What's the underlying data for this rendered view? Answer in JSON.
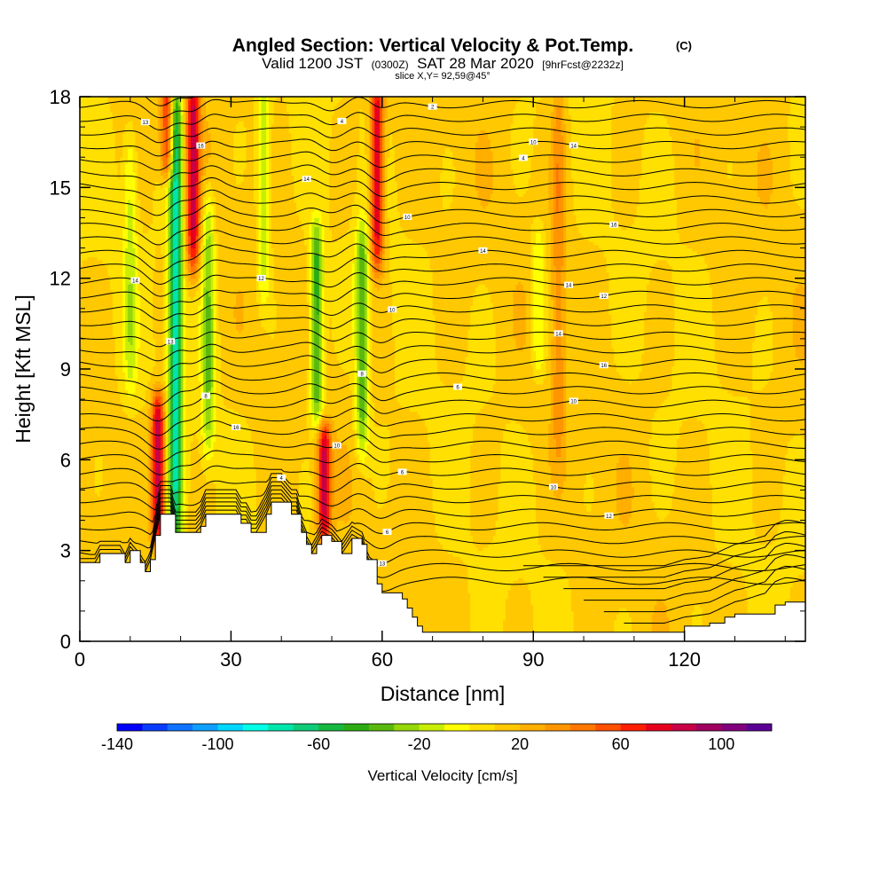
{
  "chart_data": {
    "type": "heatmap",
    "title": "Angled Section: Vertical Velocity & Pot.Temp.",
    "title_unit": "(C)",
    "subtitle_prefix": "Valid 1200 JST",
    "subtitle_utc": "(0300Z)",
    "subtitle_date": "SAT 28 Mar 2020",
    "subtitle_fcst": "[9hrFcst@2232z]",
    "slice_label": "slice X,Y= 92,59@45°",
    "xlabel": "Distance [nm]",
    "ylabel": "Height [Kft MSL]",
    "xlim": [
      0,
      144
    ],
    "ylim": [
      0,
      18
    ],
    "x_ticks": [
      0,
      30,
      60,
      90,
      120
    ],
    "x_tick_labels": [
      "0",
      "30",
      "60",
      "90",
      "120"
    ],
    "y_ticks": [
      0,
      3,
      6,
      9,
      12,
      15,
      18
    ],
    "y_tick_labels": [
      "0",
      "3",
      "6",
      "9",
      "12",
      "15",
      "18"
    ],
    "colorbar": {
      "label": "Vertical Velocity [cm/s]",
      "levels": [
        -140,
        -130,
        -120,
        -110,
        -100,
        -90,
        -80,
        -70,
        -60,
        -50,
        -40,
        -30,
        -20,
        -10,
        0,
        10,
        20,
        30,
        40,
        50,
        60,
        70,
        80,
        90,
        100,
        110
      ],
      "tick_values": [
        -140,
        -100,
        -60,
        -20,
        20,
        60,
        100
      ],
      "tick_labels": [
        "-140",
        "-100",
        "-60",
        "-20",
        "20",
        "60",
        "100"
      ],
      "colors": [
        "#0000ff",
        "#0a3cff",
        "#0f73ff",
        "#0fa0ff",
        "#00d7ff",
        "#00ffe6",
        "#00e6aa",
        "#10cc78",
        "#17b840",
        "#2cac12",
        "#5ab90e",
        "#96d70a",
        "#c8ee06",
        "#ffff00",
        "#ffe000",
        "#ffc800",
        "#ffaf00",
        "#ff9600",
        "#ff7800",
        "#ff5000",
        "#ff1e00",
        "#e6001e",
        "#c80046",
        "#a0005f",
        "#82007d",
        "#5a0096"
      ]
    },
    "terrain_profile": {
      "x": [
        0,
        3,
        4,
        8,
        9,
        10,
        12,
        13,
        14,
        15,
        16,
        18,
        19,
        21,
        23,
        24,
        25,
        26,
        27,
        29,
        31,
        32,
        33,
        34,
        35,
        37,
        38,
        39,
        40,
        42,
        43,
        44,
        45,
        46,
        47,
        48,
        50,
        52,
        54,
        56,
        57,
        59,
        60,
        61,
        63,
        64,
        65,
        66,
        67,
        68,
        70,
        80,
        90,
        100,
        105,
        110,
        113,
        116,
        120,
        125,
        128,
        130,
        136,
        138,
        140,
        142,
        144
      ],
      "y": [
        2.6,
        2.6,
        2.9,
        2.9,
        2.6,
        3.0,
        2.6,
        2.3,
        2.7,
        3.5,
        4.2,
        4.2,
        3.6,
        3.6,
        3.6,
        3.8,
        4.2,
        4.2,
        4.2,
        4.2,
        4.2,
        3.9,
        3.9,
        3.6,
        3.6,
        4.2,
        4.6,
        4.6,
        4.6,
        4.2,
        4.2,
        3.6,
        3.2,
        2.9,
        3.2,
        3.5,
        3.3,
        2.9,
        3.4,
        3.2,
        2.7,
        1.9,
        1.6,
        1.6,
        1.6,
        1.4,
        1.1,
        0.8,
        0.5,
        0.3,
        0.3,
        0.3,
        0.3,
        0.3,
        0.3,
        0.3,
        0.3,
        0.3,
        0.5,
        0.6,
        0.8,
        0.9,
        0.9,
        1.2,
        1.3,
        1.3,
        1.3
      ]
    },
    "updraft_downdraft_features": [
      {
        "x": 15.5,
        "z": [
          4.0,
          7.5
        ],
        "w": 80
      },
      {
        "x": 17.5,
        "z": [
          16.0,
          18.0
        ],
        "w": 60
      },
      {
        "x": 19.0,
        "z": [
          4.0,
          18.0
        ],
        "w": -90
      },
      {
        "x": 22.5,
        "z": [
          13.0,
          18.0
        ],
        "w": 70
      },
      {
        "x": 25.5,
        "z": [
          7.0,
          14.0
        ],
        "w": -40
      },
      {
        "x": 36.5,
        "z": [
          12.0,
          18.0
        ],
        "w": -30
      },
      {
        "x": 47.0,
        "z": [
          8.0,
          13.0
        ],
        "w": -60
      },
      {
        "x": 48.5,
        "z": [
          4.0,
          6.5
        ],
        "w": 70
      },
      {
        "x": 56.0,
        "z": [
          7.0,
          13.0
        ],
        "w": -50
      },
      {
        "x": 59.0,
        "z": [
          13.0,
          18.0
        ],
        "w": 70
      },
      {
        "x": 10.0,
        "z": [
          9.0,
          16.0
        ],
        "w": -25
      },
      {
        "x": 91.0,
        "z": [
          9.5,
          13.0
        ],
        "w": -25
      },
      {
        "x": 95.0,
        "z": [
          7.0,
          18.0
        ],
        "w": 25
      }
    ],
    "isentrope_labels": [
      "13",
      "13",
      "16",
      "16",
      "14",
      "12",
      "13",
      "10",
      "10",
      "10",
      "10",
      "12",
      "14",
      "16",
      "14",
      "16",
      "14",
      "12",
      "14",
      "10",
      "8",
      "6",
      "4",
      "6",
      "4",
      "2",
      "14",
      "6",
      "4",
      "8",
      "10"
    ]
  }
}
